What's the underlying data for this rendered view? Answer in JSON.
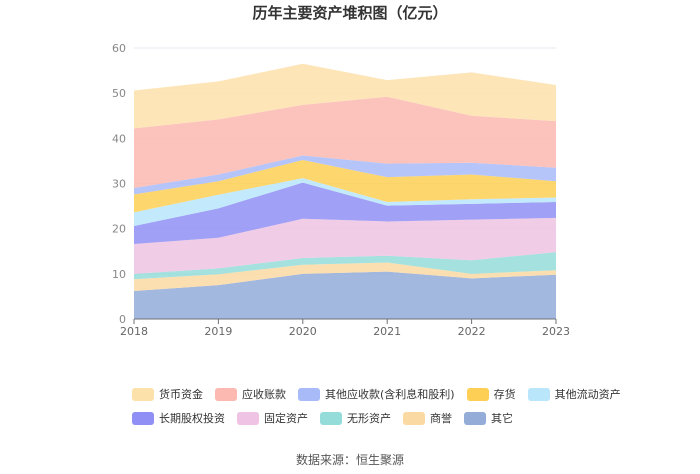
{
  "chart_data": {
    "type": "area",
    "stacked": true,
    "title": "历年主要资产堆积图（亿元）",
    "xlabel": "",
    "ylabel": "",
    "categories": [
      "2018",
      "2019",
      "2020",
      "2021",
      "2022",
      "2023"
    ],
    "y_ticks": [
      "0",
      "10",
      "20",
      "30",
      "40",
      "50",
      "60"
    ],
    "ylim": [
      0,
      60
    ],
    "legend_position": "bottom",
    "series": [
      {
        "name": "其它",
        "color": "#93acd8",
        "values": [
          6.2,
          7.5,
          10.0,
          10.5,
          9.0,
          9.8
        ]
      },
      {
        "name": "商誉",
        "color": "#fbd9a2",
        "values": [
          2.6,
          2.4,
          2.0,
          2.0,
          1.0,
          1.0
        ]
      },
      {
        "name": "无形资产",
        "color": "#94dcd9",
        "values": [
          1.2,
          1.3,
          1.5,
          1.5,
          3.0,
          4.0
        ]
      },
      {
        "name": "固定资产",
        "color": "#efc3e3",
        "values": [
          6.6,
          6.8,
          8.7,
          7.6,
          9.0,
          7.6
        ]
      },
      {
        "name": "长期股权投资",
        "color": "#8f8ff5",
        "values": [
          4.0,
          6.5,
          8.0,
          3.5,
          3.5,
          3.5
        ]
      },
      {
        "name": "其他流动资产",
        "color": "#b9e6fb",
        "values": [
          3.0,
          3.0,
          1.0,
          0.8,
          1.0,
          1.0
        ]
      },
      {
        "name": "存货",
        "color": "#fdcf54",
        "values": [
          4.0,
          3.0,
          4.0,
          5.5,
          5.5,
          3.6
        ]
      },
      {
        "name": "其他应收款(含利息和股利)",
        "color": "#a8baf8",
        "values": [
          1.4,
          1.5,
          1.0,
          3.0,
          2.6,
          3.0
        ]
      },
      {
        "name": "应收账款",
        "color": "#fcb9b2",
        "values": [
          13.2,
          12.2,
          11.2,
          14.8,
          10.4,
          10.3
        ]
      },
      {
        "name": "货币资金",
        "color": "#fde1ab",
        "values": [
          8.4,
          8.4,
          9.1,
          3.7,
          9.6,
          8.0
        ]
      }
    ]
  },
  "legend": {
    "row1": [
      "货币资金",
      "应收账款",
      "其他应收款(含利息和股利)",
      "存货",
      "其他流动资产"
    ],
    "row2": [
      "长期股权投资",
      "固定资产",
      "无形资产",
      "商誉",
      "其它"
    ]
  },
  "source": "数据来源：恒生聚源"
}
